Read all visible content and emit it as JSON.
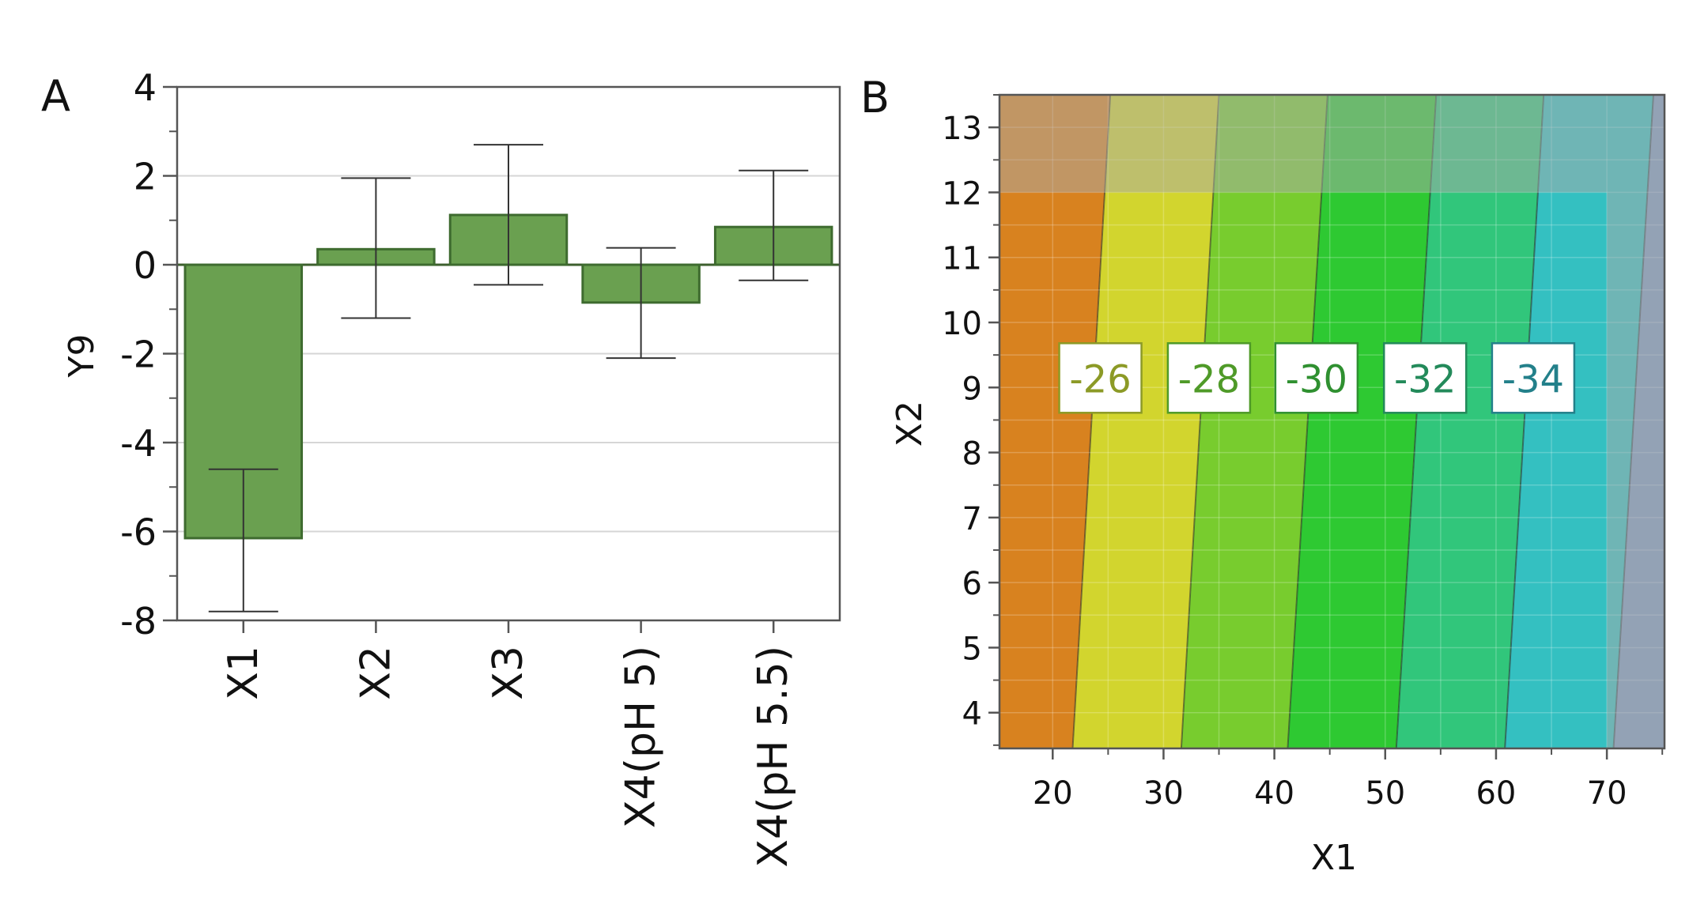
{
  "chart_data": [
    {
      "panel": "A",
      "type": "bar",
      "ylabel": "Y9",
      "xlabel": "",
      "categories": [
        "X1",
        "X2",
        "X3",
        "X4(pH 5)",
        "X4(pH 5.5)"
      ],
      "values": [
        -6.15,
        0.35,
        1.12,
        -0.85,
        0.85
      ],
      "error_low": [
        -7.8,
        -1.2,
        -0.45,
        -2.1,
        -0.35
      ],
      "error_high": [
        -4.6,
        1.95,
        2.7,
        0.38,
        2.12
      ],
      "ylim": [
        -8,
        4
      ],
      "yticks": [
        "4",
        "2",
        "0",
        "-2",
        "-4",
        "-6",
        "-8"
      ],
      "grid": true,
      "bar_color": "#6aa050"
    },
    {
      "panel": "B",
      "type": "contour",
      "xlabel": "X1",
      "ylabel": "X2",
      "xlim": [
        15.2,
        75.2
      ],
      "ylim": [
        3.45,
        13.5
      ],
      "xticks": [
        "20",
        "30",
        "40",
        "50",
        "60",
        "70"
      ],
      "yticks": [
        "4",
        "5",
        "6",
        "7",
        "8",
        "9",
        "10",
        "11",
        "12",
        "13"
      ],
      "contour_levels": [
        "-26",
        "-28",
        "-30",
        "-32",
        "-34"
      ],
      "level_label_colors": [
        "#8c9a26",
        "#4f9a28",
        "#2f9030",
        "#238a5a",
        "#23808a"
      ],
      "boundary_x_at_bottom": [
        21.8,
        31.6,
        41.2,
        51.0,
        60.8,
        70.6
      ],
      "boundary_x_at_top": [
        25.2,
        35.0,
        44.8,
        54.6,
        64.3,
        74.2
      ],
      "band_colors": [
        "#d8821f",
        "#d2d52e",
        "#78cc2e",
        "#2ec932",
        "#31c67b",
        "#34c0c1",
        "#7c9ac0"
      ],
      "shaded_region": {
        "x1_max": 70,
        "x2_max": 12
      }
    }
  ]
}
